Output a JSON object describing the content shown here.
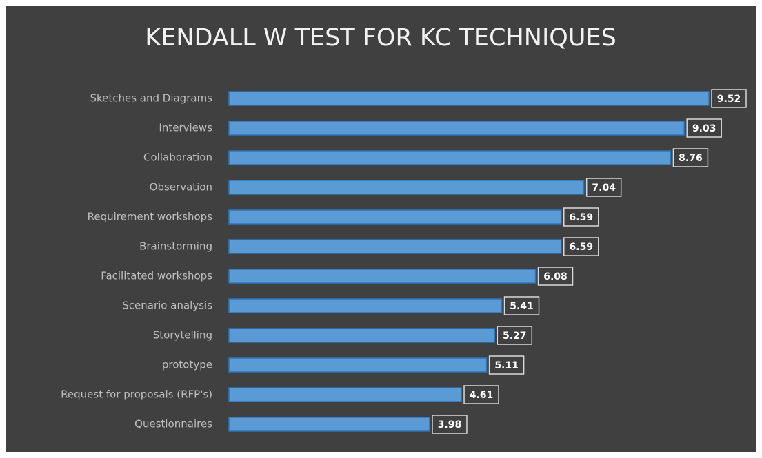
{
  "chart_data": {
    "type": "bar",
    "orientation": "horizontal",
    "title": "KENDALL W TEST FOR KC TECHNIQUES",
    "categories": [
      "Sketches and Diagrams",
      "Interviews",
      "Collaboration",
      "Observation",
      "Requirement workshops",
      "Brainstorming",
      "Facilitated workshops",
      "Scenario analysis",
      "Storytelling",
      "prototype",
      "Request for proposals (RFP's)",
      "Questionnaires"
    ],
    "values": [
      9.52,
      9.03,
      8.76,
      7.04,
      6.59,
      6.59,
      6.08,
      5.41,
      5.27,
      5.11,
      4.61,
      3.98
    ],
    "color": "#5b9bd5"
  }
}
